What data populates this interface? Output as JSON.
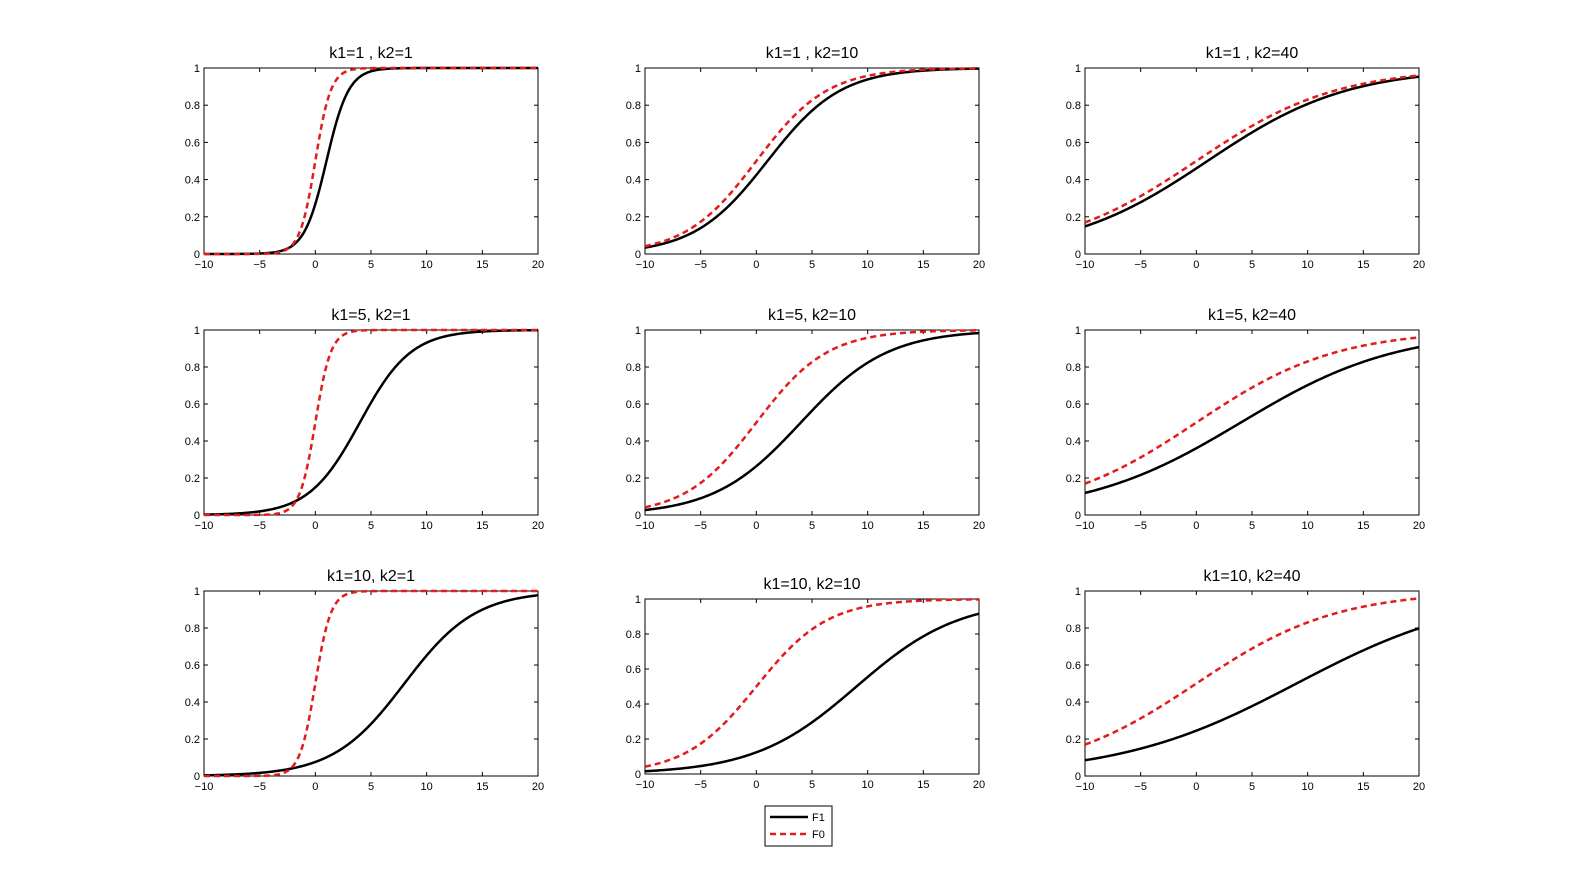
{
  "figure": {
    "legend": {
      "placement": "bottom-center",
      "entries": [
        {
          "label": "F1",
          "color": "#000000",
          "style": "solid"
        },
        {
          "label": "F0",
          "color": "#e41a1c",
          "style": "dashed"
        }
      ]
    }
  },
  "chart_data": [
    {
      "type": "line",
      "title": "k1=1 , k2=1",
      "xlim": [
        -10,
        20
      ],
      "ylim": [
        0,
        1
      ],
      "xticks": [
        "−10",
        "−5",
        "0",
        "5",
        "10",
        "15",
        "20"
      ],
      "yticks": [
        "0",
        "0.2",
        "0.4",
        "0.6",
        "0.8",
        "1"
      ],
      "series": [
        {
          "name": "F1",
          "mu": 1,
          "s": 1.0
        },
        {
          "name": "F0",
          "mu": 0,
          "s": 0.7
        }
      ]
    },
    {
      "type": "line",
      "title": "k1=1 , k2=10",
      "xlim": [
        -10,
        20
      ],
      "ylim": [
        0,
        1
      ],
      "xticks": [
        "−10",
        "−5",
        "0",
        "5",
        "10",
        "15",
        "20"
      ],
      "yticks": [
        "0",
        "0.2",
        "0.4",
        "0.6",
        "0.8",
        "1"
      ],
      "series": [
        {
          "name": "F1",
          "mu": 1,
          "s": 3.3
        },
        {
          "name": "F0",
          "mu": 0,
          "s": 3.2
        }
      ]
    },
    {
      "type": "line",
      "title": "k1=1 , k2=40",
      "xlim": [
        -10,
        20
      ],
      "ylim": [
        0,
        1
      ],
      "xticks": [
        "−10",
        "−5",
        "0",
        "5",
        "10",
        "15",
        "20"
      ],
      "yticks": [
        "0",
        "0.2",
        "0.4",
        "0.6",
        "0.8",
        "1"
      ],
      "series": [
        {
          "name": "F1",
          "mu": 1,
          "s": 6.3
        },
        {
          "name": "F0",
          "mu": 0,
          "s": 6.3
        }
      ]
    },
    {
      "type": "line",
      "title": "k1=5, k2=1",
      "xlim": [
        -10,
        20
      ],
      "ylim": [
        0,
        1
      ],
      "xticks": [
        "−10",
        "−5",
        "0",
        "5",
        "10",
        "15",
        "20"
      ],
      "yticks": [
        "0",
        "0.2",
        "0.4",
        "0.6",
        "0.8",
        "1"
      ],
      "series": [
        {
          "name": "F1",
          "mu": 4,
          "s": 2.3
        },
        {
          "name": "F0",
          "mu": 0,
          "s": 0.7
        }
      ]
    },
    {
      "type": "line",
      "title": "k1=5, k2=10",
      "xlim": [
        -10,
        20
      ],
      "ylim": [
        0,
        1
      ],
      "xticks": [
        "−10",
        "−5",
        "0",
        "5",
        "10",
        "15",
        "20"
      ],
      "yticks": [
        "0",
        "0.2",
        "0.4",
        "0.6",
        "0.8",
        "1"
      ],
      "series": [
        {
          "name": "F1",
          "mu": 4,
          "s": 3.9
        },
        {
          "name": "F0",
          "mu": 0,
          "s": 3.2
        }
      ]
    },
    {
      "type": "line",
      "title": "k1=5, k2=40",
      "xlim": [
        -10,
        20
      ],
      "ylim": [
        0,
        1
      ],
      "xticks": [
        "−10",
        "−5",
        "0",
        "5",
        "10",
        "15",
        "20"
      ],
      "yticks": [
        "0",
        "0.2",
        "0.4",
        "0.6",
        "0.8",
        "1"
      ],
      "series": [
        {
          "name": "F1",
          "mu": 4,
          "s": 7.0
        },
        {
          "name": "F0",
          "mu": 0,
          "s": 6.3
        }
      ]
    },
    {
      "type": "line",
      "title": "k1=10, k2=1",
      "xlim": [
        -10,
        20
      ],
      "ylim": [
        0,
        1
      ],
      "xticks": [
        "−10",
        "−5",
        "0",
        "5",
        "10",
        "15",
        "20"
      ],
      "yticks": [
        "0",
        "0.2",
        "0.4",
        "0.6",
        "0.8",
        "1"
      ],
      "series": [
        {
          "name": "F1",
          "mu": 8,
          "s": 3.2
        },
        {
          "name": "F0",
          "mu": 0,
          "s": 0.7
        }
      ]
    },
    {
      "type": "line",
      "title": "k1=10, k2=10",
      "xlim": [
        -10,
        20
      ],
      "ylim": [
        0,
        1
      ],
      "xticks": [
        "−10",
        "−5",
        "0",
        "5",
        "10",
        "15",
        "20"
      ],
      "yticks": [
        "0",
        "0.2",
        "0.4",
        "0.6",
        "0.8",
        "1"
      ],
      "series": [
        {
          "name": "F1",
          "mu": 9,
          "s": 4.6
        },
        {
          "name": "F0",
          "mu": 0,
          "s": 3.2
        }
      ]
    },
    {
      "type": "line",
      "title": "k1=10, k2=40",
      "xlim": [
        -10,
        20
      ],
      "ylim": [
        0,
        1
      ],
      "xticks": [
        "−10",
        "−5",
        "0",
        "5",
        "10",
        "15",
        "20"
      ],
      "yticks": [
        "0",
        "0.2",
        "0.4",
        "0.6",
        "0.8",
        "1"
      ],
      "series": [
        {
          "name": "F1",
          "mu": 9,
          "s": 8.0
        },
        {
          "name": "F0",
          "mu": 0,
          "s": 6.3
        }
      ]
    }
  ]
}
